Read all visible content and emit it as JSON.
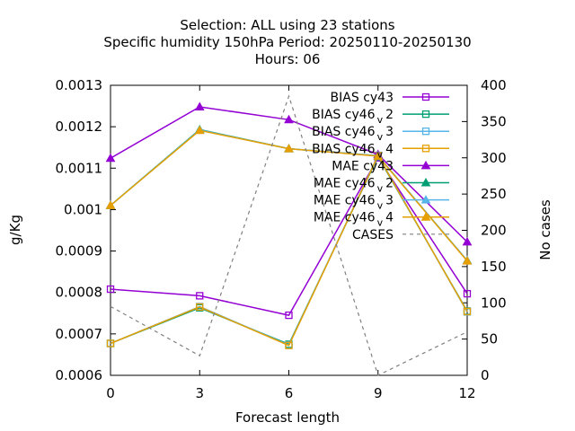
{
  "chart_data": {
    "type": "line",
    "title_lines": [
      "Selection: ALL using    23 stations",
      "Specific humidity 150hPa   Period: 20250110-20250130",
      "Hours:  06"
    ],
    "xlabel": "Forecast length",
    "ylabel": "g/Kg",
    "y2label": "No cases",
    "x": [
      0,
      3,
      6,
      9,
      12
    ],
    "xlim": [
      0,
      12
    ],
    "ylim": [
      0.0006,
      0.0013
    ],
    "y2lim": [
      0,
      400
    ],
    "x_ticks": [
      "0",
      "3",
      "6",
      "9",
      "12"
    ],
    "y_ticks": [
      "0.0006",
      "0.0007",
      "0.0008",
      "0.0009",
      "0.001",
      "0.0011",
      "0.0012",
      "0.0013"
    ],
    "y2_ticks": [
      "0",
      "50",
      "100",
      "150",
      "200",
      "250",
      "300",
      "350",
      "400"
    ],
    "legend_position": "top-right",
    "series": [
      {
        "name": "BIAS cy43",
        "label_main": "BIAS cy43",
        "label_sub": "",
        "label_tail": "",
        "color": "#9400d3",
        "marker": "open-square",
        "dash": "",
        "axis": "y",
        "values": [
          0.000808,
          0.000792,
          0.000745,
          0.001125,
          0.000797
        ]
      },
      {
        "name": "BIAS cy46_v2",
        "label_main": "BIAS cy46",
        "label_sub": "v",
        "label_tail": "2",
        "color": "#009e73",
        "marker": "open-square",
        "dash": "",
        "axis": "y",
        "values": [
          0.000677,
          0.000763,
          0.000675,
          0.001128,
          0.000755
        ]
      },
      {
        "name": "BIAS cy46_v3",
        "label_main": "BIAS cy46",
        "label_sub": "v",
        "label_tail": "3",
        "color": "#56b4e9",
        "marker": "open-square",
        "dash": "",
        "axis": "y",
        "values": [
          0.000677,
          0.000766,
          0.000673,
          0.001131,
          0.000753
        ]
      },
      {
        "name": "BIAS cy46_v4",
        "label_main": "BIAS cy46",
        "label_sub": "v",
        "label_tail": "4",
        "color": "#e69f00",
        "marker": "open-square",
        "dash": "",
        "axis": "y",
        "values": [
          0.000677,
          0.000765,
          0.000672,
          0.00113,
          0.000754
        ]
      },
      {
        "name": "MAE cy43",
        "label_main": "MAE cy43",
        "label_sub": "",
        "label_tail": "",
        "color": "#9400d3",
        "marker": "filled-triangle",
        "dash": "",
        "axis": "y",
        "values": [
          0.001124,
          0.001248,
          0.001217,
          0.001133,
          0.000922
        ]
      },
      {
        "name": "MAE cy46_v2",
        "label_main": "MAE cy46",
        "label_sub": "v",
        "label_tail": "2",
        "color": "#009e73",
        "marker": "filled-triangle",
        "dash": "",
        "axis": "y",
        "values": [
          0.00101,
          0.001193,
          0.001147,
          0.00113,
          0.000877
        ]
      },
      {
        "name": "MAE cy46_v3",
        "label_main": "MAE cy46",
        "label_sub": "v",
        "label_tail": "3",
        "color": "#56b4e9",
        "marker": "filled-triangle",
        "dash": "",
        "axis": "y",
        "values": [
          0.00101,
          0.001192,
          0.001147,
          0.00113,
          0.000877
        ]
      },
      {
        "name": "MAE cy46_v4",
        "label_main": "MAE cy46",
        "label_sub": "v",
        "label_tail": "4",
        "color": "#e69f00",
        "marker": "filled-triangle",
        "dash": "",
        "axis": "y",
        "values": [
          0.00101,
          0.001191,
          0.001147,
          0.001129,
          0.000876
        ]
      },
      {
        "name": "CASES",
        "label_main": "CASES",
        "label_sub": "",
        "label_tail": "",
        "color": "#808080",
        "marker": "none",
        "dash": "4,4",
        "axis": "y2",
        "values": [
          95,
          27,
          385,
          0,
          60
        ]
      }
    ]
  }
}
